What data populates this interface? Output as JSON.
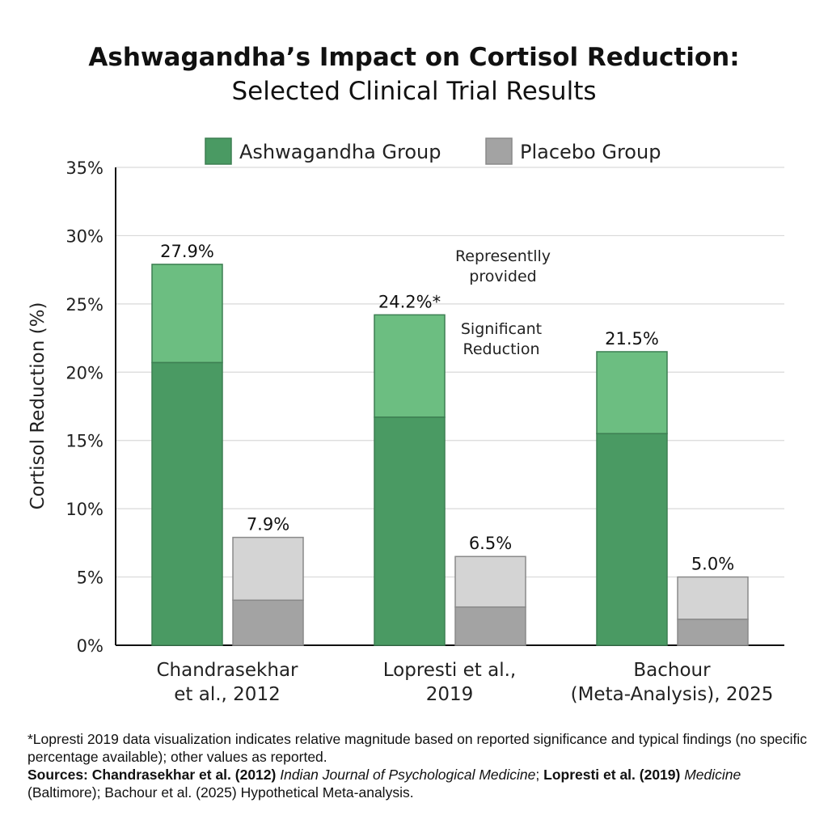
{
  "chart_data": {
    "type": "bar",
    "title": "Ashwagandha’s Impact on Cortisol Reduction:",
    "subtitle": "Selected Clinical Trial Results",
    "ylabel": "Cortisol Reduction (%)",
    "xlabel": "",
    "ylim": [
      0,
      35
    ],
    "yticks": [
      "0%",
      "5%",
      "10%",
      "15%",
      "20%",
      "25%",
      "30%",
      "35%"
    ],
    "grid": true,
    "legend_position": "top",
    "categories": [
      [
        "Chandrasekhar",
        "et al., 2012"
      ],
      [
        "Lopresti et al.,",
        "2019"
      ],
      [
        "Bachour",
        "(Meta-Analysis), 2025"
      ]
    ],
    "series": [
      {
        "name": "Ashwagandha Group",
        "values": [
          27.9,
          24.2,
          21.5
        ],
        "labels": [
          "27.9%",
          "24.2%*",
          "21.5%"
        ],
        "lower_segment": [
          20.7,
          16.7,
          15.5
        ],
        "color": "#4a9a63",
        "color_light": "#6cbe81"
      },
      {
        "name": "Placebo Group",
        "values": [
          7.9,
          6.5,
          5.0
        ],
        "labels": [
          "7.9%",
          "6.5%",
          "5.0%"
        ],
        "lower_segment": [
          3.3,
          2.8,
          1.9
        ],
        "color": "#a3a3a3",
        "color_light": "#d4d4d4"
      }
    ],
    "annotations": [
      [
        "Representlly",
        "provided"
      ],
      [
        "Significant",
        "Reduction"
      ]
    ]
  },
  "footnote": {
    "note": "*Lopresti 2019 data visualization indicates relative magnitude based on reported significance and typical findings (no specific percentage available); other values as reported.",
    "sources_label": "Sources: Chandrasekhar et al. (2012)",
    "source1_journal": "Indian Journal of Psychological Medicine",
    "sep1": "; ",
    "source2": "Lopresti et al. (2019)",
    "source2_journal": "Medicine",
    "source2_rest": " (Baltimore); Bachour et al. (2025) Hypothetical Meta-analysis."
  }
}
